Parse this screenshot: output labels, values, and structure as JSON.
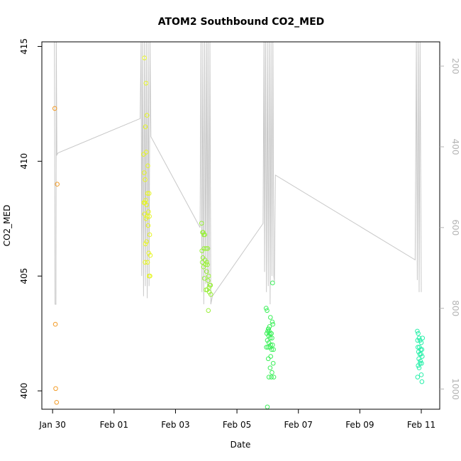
{
  "chart_data": {
    "type": "scatter",
    "title": "ATOM2 Southbound CO2_MED",
    "xlabel": "Date",
    "ylabel": "CO2_MED",
    "x_ticks": [
      "Jan 30",
      "Feb 01",
      "Feb 03",
      "Feb 05",
      "Feb 07",
      "Feb 09",
      "Feb 11"
    ],
    "x_tick_days": [
      0,
      2,
      4,
      6,
      8,
      10,
      12
    ],
    "xlim_days": [
      -0.35,
      12.6
    ],
    "ylim": [
      399.2,
      415.2
    ],
    "y_ticks": [
      400,
      405,
      410,
      415
    ],
    "y2_ticks": [
      200,
      400,
      600,
      800,
      1000
    ],
    "y2lim": [
      1050,
      140
    ],
    "grid": false,
    "colors": {
      "axis": "#000000",
      "secondary_axis": "#b4b4b4",
      "altitude_line": "#c8c8c8"
    },
    "series": [
      {
        "color": "#f39c28",
        "x": [
          0.07,
          0.15,
          0.09,
          0.1,
          0.13
        ],
        "y": [
          412.3,
          409.0,
          402.9,
          400.1,
          399.5
        ]
      },
      {
        "color": "#e6f526",
        "x": [
          2.99,
          3.04,
          3.07,
          3.02,
          2.96,
          3.05,
          3.1,
          2.98,
          3.01,
          3.09,
          3.14,
          3.03,
          2.97,
          3.0,
          3.06,
          3.12,
          3.15,
          3.08,
          2.99,
          3.04,
          3.11,
          3.16,
          3.02,
          3.06,
          3.13,
          3.18,
          3.01,
          3.09,
          3.17,
          3.14
        ],
        "y": [
          414.5,
          413.4,
          412.0,
          411.5,
          410.3,
          410.4,
          409.8,
          409.5,
          409.2,
          408.6,
          408.6,
          408.3,
          408.2,
          408.2,
          408.1,
          407.8,
          407.6,
          407.6,
          407.7,
          407.5,
          407.2,
          406.8,
          406.4,
          406.5,
          406.0,
          405.9,
          405.6,
          405.6,
          405.0,
          405.0
        ]
      },
      {
        "color": "#9af03c",
        "x": [
          4.85,
          4.9,
          4.95,
          4.88,
          4.92,
          5.0,
          4.86,
          4.93,
          5.05,
          4.89,
          4.96,
          5.02,
          4.87,
          4.98,
          5.04,
          4.91,
          5.01,
          5.08,
          4.94,
          5.06,
          5.12,
          4.99,
          5.1,
          5.15,
          5.03,
          5.09,
          5.14,
          5.07
        ],
        "y": [
          407.3,
          406.9,
          406.8,
          406.9,
          406.8,
          406.2,
          406.1,
          406.2,
          406.2,
          405.8,
          405.7,
          405.6,
          405.6,
          405.5,
          405.5,
          405.4,
          405.2,
          405.0,
          404.9,
          404.8,
          404.6,
          404.4,
          404.3,
          404.2,
          404.4,
          404.5,
          404.6,
          403.5
        ]
      },
      {
        "color": "#3cf05a",
        "x": [
          6.95,
          6.98,
          7.02,
          7.0,
          7.06,
          7.12,
          6.97,
          7.03,
          7.08,
          7.14,
          6.99,
          7.04,
          7.1,
          7.16,
          7.01,
          7.07,
          7.13,
          7.19,
          6.96,
          7.05,
          7.11,
          7.17,
          7.03,
          7.09,
          7.15,
          7.02,
          7.08,
          7.14,
          7.2,
          7.12,
          7.18,
          7.1,
          7.04,
          7.16,
          7.06,
          6.99
        ],
        "y": [
          403.6,
          403.5,
          402.7,
          402.6,
          402.5,
          402.5,
          402.5,
          402.4,
          402.3,
          402.3,
          402.2,
          402.1,
          402.0,
          402.0,
          401.9,
          401.9,
          401.8,
          401.8,
          401.9,
          402.6,
          402.5,
          402.9,
          402.7,
          403.2,
          403.0,
          401.4,
          401.0,
          400.8,
          400.6,
          400.6,
          401.2,
          401.5,
          400.6,
          404.7,
          402.8,
          399.3
        ]
      },
      {
        "color": "#28f0aa",
        "x": [
          11.87,
          11.9,
          11.93,
          11.88,
          11.96,
          12.0,
          11.89,
          11.94,
          11.98,
          12.02,
          11.91,
          11.95,
          11.99,
          12.03,
          11.92,
          11.97,
          12.01,
          11.9,
          11.96,
          12.04,
          11.93,
          12.0,
          11.88,
          12.02
        ],
        "y": [
          402.6,
          402.5,
          402.3,
          402.2,
          402.2,
          402.1,
          401.9,
          401.9,
          401.8,
          401.8,
          401.7,
          401.6,
          401.6,
          401.5,
          401.4,
          401.3,
          401.2,
          401.1,
          401.2,
          402.3,
          401.0,
          400.7,
          400.6,
          400.4
        ]
      }
    ]
  }
}
